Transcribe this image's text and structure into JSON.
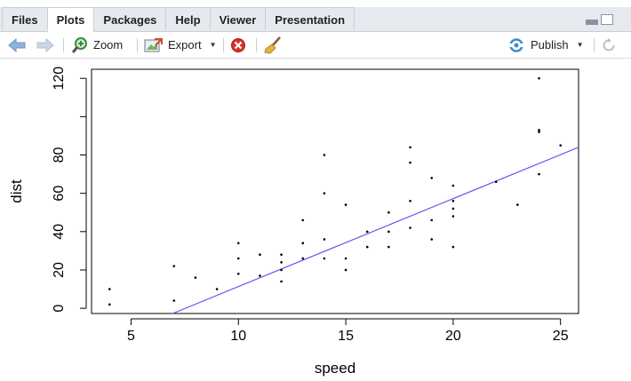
{
  "tabs": [
    {
      "label": "Files",
      "active": false
    },
    {
      "label": "Plots",
      "active": true
    },
    {
      "label": "Packages",
      "active": false
    },
    {
      "label": "Help",
      "active": false
    },
    {
      "label": "Viewer",
      "active": false
    },
    {
      "label": "Presentation",
      "active": false
    }
  ],
  "toolbar": {
    "back_icon": "arrow-left-icon",
    "forward_icon": "arrow-right-icon",
    "zoom_label": "Zoom",
    "export_label": "Export",
    "remove_icon": "remove-plot-icon",
    "clear_icon": "broom-icon",
    "publish_label": "Publish",
    "refresh_icon": "refresh-icon"
  },
  "chart_data": {
    "type": "scatter",
    "xlabel": "speed",
    "ylabel": "dist",
    "xlim": [
      4,
      25
    ],
    "ylim": [
      2,
      120
    ],
    "xticks": [
      5,
      10,
      15,
      20,
      25
    ],
    "yticks": [
      0,
      20,
      40,
      60,
      80,
      120
    ],
    "points": [
      [
        4,
        2
      ],
      [
        4,
        10
      ],
      [
        7,
        4
      ],
      [
        7,
        22
      ],
      [
        8,
        16
      ],
      [
        9,
        10
      ],
      [
        10,
        18
      ],
      [
        10,
        26
      ],
      [
        10,
        34
      ],
      [
        11,
        17
      ],
      [
        11,
        28
      ],
      [
        12,
        14
      ],
      [
        12,
        20
      ],
      [
        12,
        24
      ],
      [
        12,
        28
      ],
      [
        13,
        26
      ],
      [
        13,
        34
      ],
      [
        13,
        34
      ],
      [
        13,
        46
      ],
      [
        14,
        26
      ],
      [
        14,
        36
      ],
      [
        14,
        60
      ],
      [
        14,
        80
      ],
      [
        15,
        20
      ],
      [
        15,
        26
      ],
      [
        15,
        54
      ],
      [
        16,
        32
      ],
      [
        16,
        40
      ],
      [
        17,
        32
      ],
      [
        17,
        40
      ],
      [
        17,
        50
      ],
      [
        18,
        42
      ],
      [
        18,
        56
      ],
      [
        18,
        76
      ],
      [
        18,
        84
      ],
      [
        19,
        36
      ],
      [
        19,
        46
      ],
      [
        19,
        68
      ],
      [
        20,
        32
      ],
      [
        20,
        48
      ],
      [
        20,
        52
      ],
      [
        20,
        56
      ],
      [
        20,
        64
      ],
      [
        22,
        66
      ],
      [
        23,
        54
      ],
      [
        24,
        70
      ],
      [
        24,
        92
      ],
      [
        24,
        93
      ],
      [
        24,
        120
      ],
      [
        25,
        85
      ]
    ],
    "regression_line": {
      "intercept": -17.579,
      "slope": 3.932,
      "color": "#5b5bf0"
    },
    "grid": false,
    "legend": "none"
  }
}
